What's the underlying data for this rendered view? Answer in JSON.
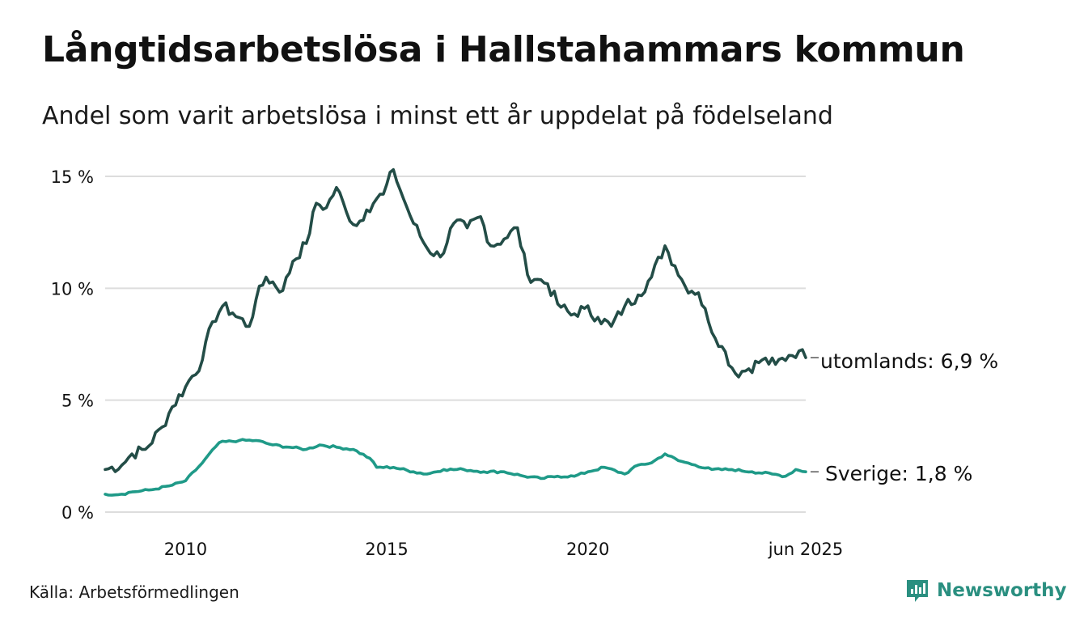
{
  "title": "Långtidsarbetslösa i Hallstahammars kommun",
  "subtitle": "Andel som varit arbetslösa i minst ett år uppdelat på födelseland",
  "source": "Källa: Arbetsförmedlingen",
  "brand": {
    "name": "Newsworthy",
    "icon": "newsworthy-logo-icon"
  },
  "colors": {
    "utomlands": "#234d47",
    "sverige": "#1f9a88",
    "grid": "#dddddd",
    "text": "#111111"
  },
  "chart_data": {
    "type": "line",
    "title": "Långtidsarbetslösa i Hallstahammars kommun",
    "subtitle": "Andel som varit arbetslösa i minst ett år uppdelat på födelseland",
    "x_start": "2008-01",
    "x_end": "2025-06",
    "ylim": [
      0,
      15
    ],
    "y_ticks": [
      0,
      5,
      10,
      15
    ],
    "y_tick_labels": [
      "0 %",
      "5 %",
      "10 %",
      "15 %"
    ],
    "x_ticks": [
      "2010",
      "2015",
      "2020",
      "jun 2025"
    ],
    "grid": "horizontal",
    "series": [
      {
        "name": "utomlands",
        "label": "utomlands: 6,9 %",
        "color": "#234d47",
        "anchors": [
          [
            "2008-01",
            1.9
          ],
          [
            "2008-06",
            2.1
          ],
          [
            "2008-09",
            2.6
          ],
          [
            "2009-01",
            2.8
          ],
          [
            "2009-06",
            3.8
          ],
          [
            "2009-09",
            4.7
          ],
          [
            "2010-01",
            5.6
          ],
          [
            "2010-06",
            6.8
          ],
          [
            "2010-09",
            8.5
          ],
          [
            "2010-12",
            9.2
          ],
          [
            "2011-03",
            8.9
          ],
          [
            "2011-08",
            8.3
          ],
          [
            "2011-10",
            9.5
          ],
          [
            "2012-01",
            10.5
          ],
          [
            "2012-06",
            9.9
          ],
          [
            "2012-09",
            11.2
          ],
          [
            "2013-01",
            12.0
          ],
          [
            "2013-04",
            13.8
          ],
          [
            "2013-07",
            13.6
          ],
          [
            "2013-10",
            14.5
          ],
          [
            "2014-01",
            13.4
          ],
          [
            "2014-04",
            12.8
          ],
          [
            "2014-07",
            13.5
          ],
          [
            "2014-10",
            14.0
          ],
          [
            "2014-12",
            14.2
          ],
          [
            "2015-03",
            15.3
          ],
          [
            "2015-06",
            14.0
          ],
          [
            "2015-09",
            12.9
          ],
          [
            "2016-01",
            11.8
          ],
          [
            "2016-05",
            11.4
          ],
          [
            "2016-09",
            12.9
          ],
          [
            "2017-01",
            12.7
          ],
          [
            "2017-05",
            13.2
          ],
          [
            "2017-08",
            11.9
          ],
          [
            "2017-12",
            12.2
          ],
          [
            "2018-04",
            12.7
          ],
          [
            "2018-07",
            10.6
          ],
          [
            "2018-10",
            10.4
          ],
          [
            "2019-01",
            10.2
          ],
          [
            "2019-04",
            9.3
          ],
          [
            "2019-08",
            8.8
          ],
          [
            "2019-12",
            9.1
          ],
          [
            "2020-04",
            8.7
          ],
          [
            "2020-08",
            8.3
          ],
          [
            "2020-12",
            9.2
          ],
          [
            "2021-04",
            9.7
          ],
          [
            "2021-08",
            10.5
          ],
          [
            "2021-12",
            11.9
          ],
          [
            "2022-03",
            11.0
          ],
          [
            "2022-06",
            10.1
          ],
          [
            "2022-10",
            9.8
          ],
          [
            "2023-01",
            8.5
          ],
          [
            "2023-05",
            7.4
          ],
          [
            "2023-09",
            6.2
          ],
          [
            "2024-01",
            6.4
          ],
          [
            "2024-05",
            6.8
          ],
          [
            "2024-09",
            6.6
          ],
          [
            "2025-01",
            7.0
          ],
          [
            "2025-04",
            7.2
          ],
          [
            "2025-06",
            6.9
          ]
        ]
      },
      {
        "name": "Sverige",
        "label": "Sverige: 1,8 %",
        "color": "#1f9a88",
        "anchors": [
          [
            "2008-01",
            0.8
          ],
          [
            "2008-06",
            0.8
          ],
          [
            "2008-09",
            0.9
          ],
          [
            "2009-03",
            1.0
          ],
          [
            "2009-09",
            1.2
          ],
          [
            "2010-01",
            1.4
          ],
          [
            "2010-06",
            2.2
          ],
          [
            "2010-11",
            3.1
          ],
          [
            "2011-05",
            3.2
          ],
          [
            "2011-10",
            3.2
          ],
          [
            "2012-03",
            3.0
          ],
          [
            "2012-08",
            2.9
          ],
          [
            "2013-01",
            2.8
          ],
          [
            "2013-05",
            3.0
          ],
          [
            "2013-10",
            2.9
          ],
          [
            "2014-03",
            2.8
          ],
          [
            "2014-08",
            2.4
          ],
          [
            "2014-10",
            2.0
          ],
          [
            "2015-03",
            2.0
          ],
          [
            "2015-09",
            1.8
          ],
          [
            "2016-01",
            1.7
          ],
          [
            "2016-06",
            1.9
          ],
          [
            "2016-12",
            1.9
          ],
          [
            "2017-06",
            1.8
          ],
          [
            "2017-12",
            1.8
          ],
          [
            "2018-06",
            1.6
          ],
          [
            "2018-11",
            1.5
          ],
          [
            "2019-04",
            1.6
          ],
          [
            "2019-09",
            1.6
          ],
          [
            "2020-01",
            1.8
          ],
          [
            "2020-06",
            2.0
          ],
          [
            "2020-12",
            1.7
          ],
          [
            "2021-04",
            2.1
          ],
          [
            "2021-08",
            2.2
          ],
          [
            "2021-12",
            2.6
          ],
          [
            "2022-04",
            2.3
          ],
          [
            "2022-09",
            2.1
          ],
          [
            "2023-02",
            1.9
          ],
          [
            "2023-08",
            1.9
          ],
          [
            "2024-02",
            1.8
          ],
          [
            "2024-08",
            1.7
          ],
          [
            "2024-12",
            1.6
          ],
          [
            "2025-03",
            1.9
          ],
          [
            "2025-06",
            1.8
          ]
        ]
      }
    ]
  }
}
